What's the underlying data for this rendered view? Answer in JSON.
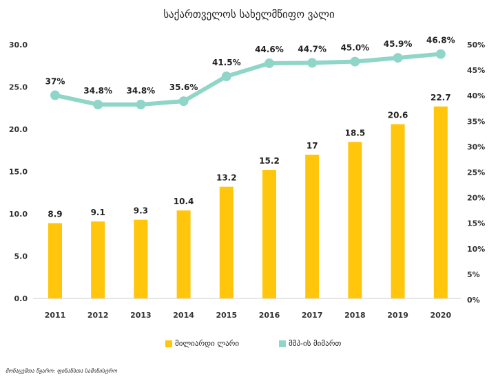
{
  "chart_data": {
    "type": "bar",
    "title": "საქართველოს სახელმწიფო ვალი",
    "categories": [
      "2011",
      "2012",
      "2013",
      "2014",
      "2015",
      "2016",
      "2017",
      "2018",
      "2019",
      "2020"
    ],
    "series": [
      {
        "name": "მილიარდი ლარი",
        "type": "bar",
        "axis": "left",
        "color": "#FFC60B",
        "values": [
          8.9,
          9.1,
          9.3,
          10.4,
          13.2,
          15.2,
          17,
          18.5,
          20.6,
          22.7
        ],
        "labels": [
          "8.9",
          "9.1",
          "9.3",
          "10.4",
          "13.2",
          "15.2",
          "17",
          "18.5",
          "20.6",
          "22.7"
        ]
      },
      {
        "name": "მშპ-ის მიმართ",
        "type": "line",
        "axis": "right",
        "color": "#8FD6C8",
        "values": [
          37,
          34.8,
          34.8,
          35.6,
          41.5,
          44.6,
          44.7,
          45.0,
          45.9,
          46.8
        ],
        "labels": [
          "37%",
          "34.8%",
          "34.8%",
          "35.6%",
          "41.5%",
          "44.6%",
          "44.7%",
          "45.0%",
          "45.9%",
          "46.8%"
        ]
      }
    ],
    "y_left": {
      "ylim": [
        0,
        30
      ],
      "ticks": [
        "0.0",
        "5.0",
        "10.0",
        "15.0",
        "20.0",
        "25.0",
        "30.0"
      ]
    },
    "y_right": {
      "ylim": [
        0,
        50
      ],
      "ticks": [
        "0%",
        "5%",
        "10%",
        "15%",
        "20%",
        "25%",
        "30%",
        "35%",
        "40%",
        "45%",
        "50%"
      ]
    },
    "grid": false,
    "legend_position": "bottom"
  },
  "source": "მონაცემთა წყარო: ფინანსთა სამინისტრო"
}
